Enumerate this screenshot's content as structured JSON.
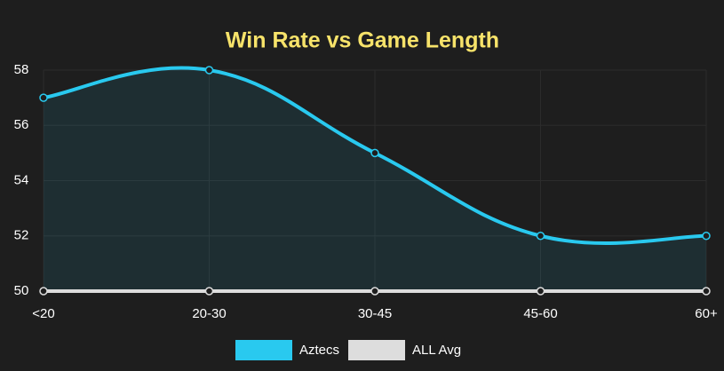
{
  "chart_data": {
    "type": "line",
    "title": "Win Rate vs Game Length",
    "categories": [
      "<20",
      "20-30",
      "30-45",
      "45-60",
      "60+"
    ],
    "series": [
      {
        "name": "Aztecs",
        "color": "#29c9ef",
        "values": [
          57,
          58,
          55,
          52,
          52
        ]
      },
      {
        "name": "ALL Avg",
        "color": "#dddddd",
        "values": [
          50,
          50,
          50,
          50,
          50
        ]
      }
    ],
    "ylim": [
      50,
      58
    ],
    "yticks": [
      50,
      52,
      54,
      56,
      58
    ],
    "grid": true,
    "legend": "bottom",
    "area": true
  }
}
